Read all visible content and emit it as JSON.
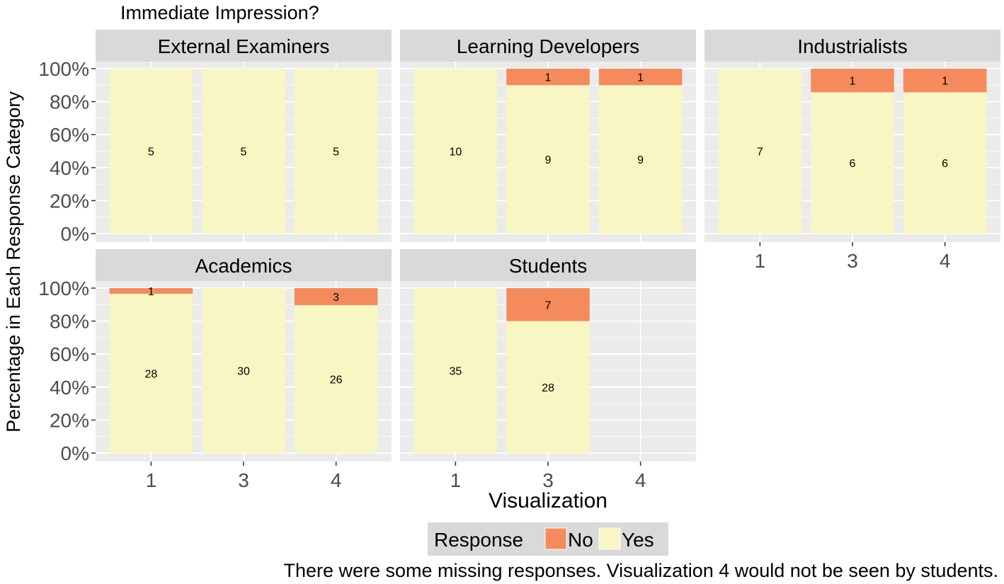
{
  "chart_data": {
    "type": "bar",
    "stacked": "percent",
    "title": "Immediate Impression?",
    "xlabel": "Visualization",
    "ylabel": "Percentage in Each Response Category",
    "caption": "There were some missing responses.  Visualization 4 would not be seen by students.",
    "yticks": [
      "0%",
      "20%",
      "40%",
      "60%",
      "80%",
      "100%"
    ],
    "ylim": [
      0,
      1
    ],
    "categories": [
      "1",
      "3",
      "4"
    ],
    "legend": {
      "title": "Response",
      "placement": "bottom",
      "entries": [
        {
          "name": "No",
          "color": "#F58B5C"
        },
        {
          "name": "Yes",
          "color": "#F8F6C2"
        }
      ]
    },
    "colors": {
      "panel": "#EBEBEB",
      "strip": "#D9D9D9",
      "grid": "#FFFFFF"
    },
    "panels": [
      {
        "name": "External Examiners",
        "bars": [
          {
            "x": "1",
            "No": 0,
            "Yes": 5
          },
          {
            "x": "3",
            "No": 0,
            "Yes": 5
          },
          {
            "x": "4",
            "No": 0,
            "Yes": 5
          }
        ]
      },
      {
        "name": "Learning Developers",
        "bars": [
          {
            "x": "1",
            "No": 0,
            "Yes": 10
          },
          {
            "x": "3",
            "No": 1,
            "Yes": 9
          },
          {
            "x": "4",
            "No": 1,
            "Yes": 9
          }
        ]
      },
      {
        "name": "Industrialists",
        "bars": [
          {
            "x": "1",
            "No": 0,
            "Yes": 7
          },
          {
            "x": "3",
            "No": 1,
            "Yes": 6
          },
          {
            "x": "4",
            "No": 1,
            "Yes": 6
          }
        ]
      },
      {
        "name": "Academics",
        "bars": [
          {
            "x": "1",
            "No": 1,
            "Yes": 28
          },
          {
            "x": "3",
            "No": 0,
            "Yes": 30
          },
          {
            "x": "4",
            "No": 3,
            "Yes": 26
          }
        ]
      },
      {
        "name": "Students",
        "bars": [
          {
            "x": "1",
            "No": 0,
            "Yes": 35
          },
          {
            "x": "3",
            "No": 7,
            "Yes": 28
          }
        ]
      }
    ]
  }
}
